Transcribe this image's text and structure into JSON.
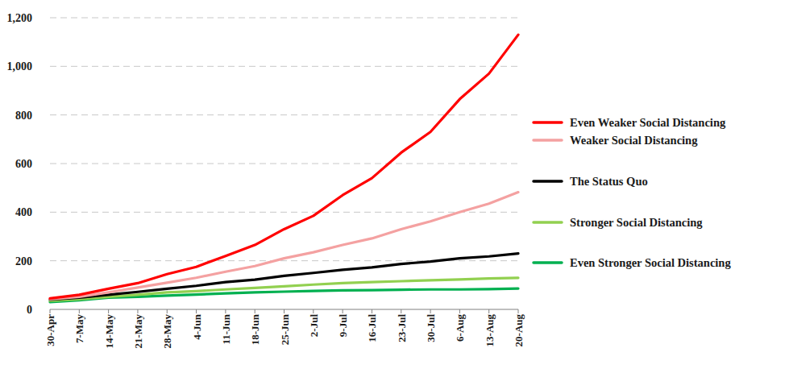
{
  "chart_data": {
    "type": "line",
    "categories": [
      "30-Apr",
      "7-May",
      "14-May",
      "21-May",
      "28-May",
      "4-Jun",
      "11-Jun",
      "18-Jun",
      "25-Jun",
      "2-Jul",
      "9-Jul",
      "16-Jul",
      "23-Jul",
      "30-Jul",
      "6-Aug",
      "13-Aug",
      "20-Aug"
    ],
    "series": [
      {
        "name": "Even Weaker Social Distancing",
        "color": "#ff0000",
        "values": [
          45,
          60,
          85,
          108,
          145,
          175,
          220,
          265,
          330,
          385,
          470,
          540,
          645,
          730,
          865,
          970,
          1130
        ]
      },
      {
        "name": "Weaker Social Distancing",
        "color": "#f4a1a1",
        "values": [
          42,
          52,
          70,
          90,
          110,
          130,
          155,
          178,
          210,
          235,
          265,
          292,
          330,
          362,
          400,
          435,
          482
        ]
      },
      {
        "name": "The Status Quo",
        "color": "#000000",
        "values": [
          40,
          48,
          60,
          72,
          85,
          97,
          112,
          122,
          138,
          150,
          163,
          173,
          187,
          197,
          210,
          218,
          230
        ]
      },
      {
        "name": "Stronger Social Distancing",
        "color": "#92d050",
        "values": [
          35,
          42,
          52,
          60,
          70,
          75,
          82,
          88,
          95,
          102,
          108,
          112,
          116,
          120,
          123,
          127,
          130
        ]
      },
      {
        "name": "Even Stronger Social Distancing",
        "color": "#00b050",
        "values": [
          30,
          38,
          48,
          52,
          57,
          61,
          66,
          70,
          73,
          76,
          78,
          79,
          81,
          82,
          82,
          83,
          86
        ]
      }
    ],
    "ylim": [
      0,
      1200
    ],
    "yticks": [
      0,
      200,
      400,
      600,
      800,
      {
        "value": 1000,
        "label": "1,000"
      },
      {
        "value": 1200,
        "label": "1,200"
      }
    ],
    "grid": true,
    "legend": "right"
  }
}
